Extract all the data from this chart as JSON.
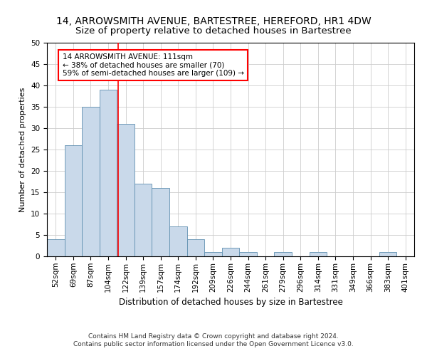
{
  "title": "14, ARROWSMITH AVENUE, BARTESTREE, HEREFORD, HR1 4DW",
  "subtitle": "Size of property relative to detached houses in Bartestree",
  "xlabel": "Distribution of detached houses by size in Bartestree",
  "ylabel": "Number of detached properties",
  "footer_line1": "Contains HM Land Registry data © Crown copyright and database right 2024.",
  "footer_line2": "Contains public sector information licensed under the Open Government Licence v3.0.",
  "bin_labels": [
    "52sqm",
    "69sqm",
    "87sqm",
    "104sqm",
    "122sqm",
    "139sqm",
    "157sqm",
    "174sqm",
    "192sqm",
    "209sqm",
    "226sqm",
    "244sqm",
    "261sqm",
    "279sqm",
    "296sqm",
    "314sqm",
    "331sqm",
    "349sqm",
    "366sqm",
    "383sqm",
    "401sqm"
  ],
  "bar_values": [
    4,
    26,
    35,
    39,
    31,
    17,
    16,
    7,
    4,
    1,
    2,
    1,
    0,
    1,
    0,
    1,
    0,
    0,
    0,
    1,
    0
  ],
  "bar_color": "#c9d9ea",
  "bar_edgecolor": "#6090b0",
  "ylim": [
    0,
    50
  ],
  "yticks": [
    0,
    5,
    10,
    15,
    20,
    25,
    30,
    35,
    40,
    45,
    50
  ],
  "red_line_x": 3.55,
  "annotation_text": "14 ARROWSMITH AVENUE: 111sqm\n← 38% of detached houses are smaller (70)\n59% of semi-detached houses are larger (109) →",
  "title_fontsize": 10,
  "subtitle_fontsize": 9.5,
  "axis_fontsize": 8,
  "tick_fontsize": 7.5,
  "annotation_fontsize": 7.5,
  "footer_fontsize": 6.5,
  "xlabel_fontsize": 8.5
}
